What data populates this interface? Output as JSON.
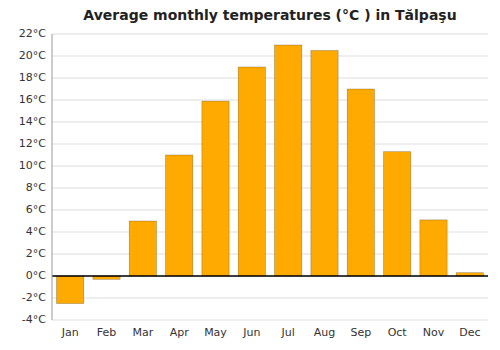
{
  "chart_data": {
    "type": "bar",
    "title": "Average monthly temperatures (°C ) in Tălpaşu",
    "categories": [
      "Jan",
      "Feb",
      "Mar",
      "Apr",
      "May",
      "Jun",
      "Jul",
      "Aug",
      "Sep",
      "Oct",
      "Nov",
      "Dec"
    ],
    "values": [
      -2.5,
      -0.3,
      5.0,
      11.0,
      15.9,
      19.0,
      21.0,
      20.5,
      17.0,
      11.3,
      5.1,
      0.3
    ],
    "color": "#FFAA00",
    "ylim": [
      -4,
      22
    ],
    "yticks": [
      {
        "value": -4,
        "label": "-4°C"
      },
      {
        "value": -2,
        "label": "-2°C"
      },
      {
        "value": 0,
        "label": "0°C"
      },
      {
        "value": 2,
        "label": "2°C"
      },
      {
        "value": 4,
        "label": "4°C"
      },
      {
        "value": 6,
        "label": "6°C"
      },
      {
        "value": 8,
        "label": "8°C"
      },
      {
        "value": 10,
        "label": "10°C"
      },
      {
        "value": 12,
        "label": "12°C"
      },
      {
        "value": 14,
        "label": "14°C"
      },
      {
        "value": 16,
        "label": "16°C"
      },
      {
        "value": 18,
        "label": "18°C"
      },
      {
        "value": 20,
        "label": "20°C"
      },
      {
        "value": 22,
        "label": "22°C"
      }
    ],
    "grid": true
  }
}
